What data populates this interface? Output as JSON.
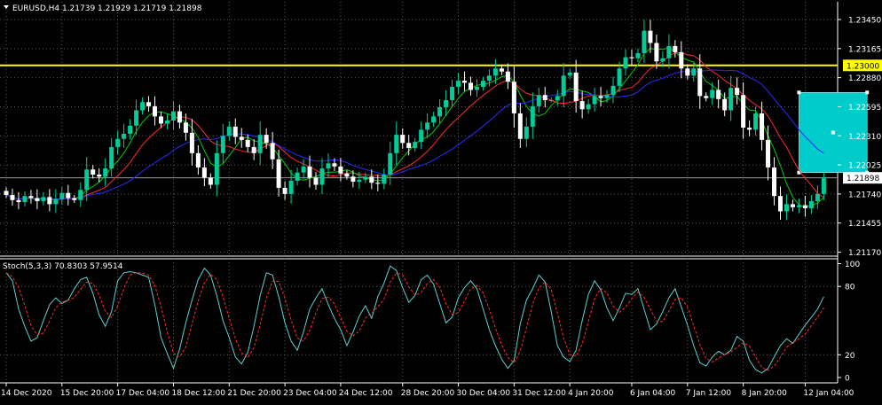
{
  "chart_data": {
    "type": "candlestick",
    "symbol_header": "EURUSD,H4  1.21739 1.21929 1.21719 1.21898",
    "price_axis_labels": [
      "1.23450",
      "1.23165",
      "1.22880",
      "1.22595",
      "1.22310",
      "1.22025",
      "1.21740",
      "1.21455",
      "1.21170"
    ],
    "price_axis_values": [
      1.2345,
      1.23165,
      1.2288,
      1.22595,
      1.2231,
      1.22025,
      1.2174,
      1.21455,
      1.2117
    ],
    "horizontal_line": {
      "price": 1.23,
      "label": "1.23000",
      "color": "#ffff00"
    },
    "last_price": {
      "price": 1.21898,
      "label": "1.21898"
    },
    "rectangle_zone": {
      "from_bar": 128,
      "to_bar": 139,
      "price_top": 1.22735,
      "price_bottom": 1.2195,
      "color": "#00cccc"
    },
    "time_labels": [
      {
        "bar": 0,
        "label": "14 Dec 2020"
      },
      {
        "bar": 9,
        "label": "15 Dec 20:00"
      },
      {
        "bar": 18,
        "label": "17 Dec 04:00"
      },
      {
        "bar": 27,
        "label": "18 Dec 12:00"
      },
      {
        "bar": 36,
        "label": "21 Dec 20:00"
      },
      {
        "bar": 45,
        "label": "23 Dec 04:00"
      },
      {
        "bar": 54,
        "label": "24 Dec 12:00"
      },
      {
        "bar": 64,
        "label": "28 Dec 20:00"
      },
      {
        "bar": 73,
        "label": "30 Dec 04:00"
      },
      {
        "bar": 82,
        "label": "31 Dec 12:00"
      },
      {
        "bar": 91,
        "label": "4 Jan 20:00"
      },
      {
        "bar": 101,
        "label": "6 Jan 04:00"
      },
      {
        "bar": 110,
        "label": "7 Jan 12:00"
      },
      {
        "bar": 119,
        "label": "8 Jan 20:00"
      },
      {
        "bar": 129,
        "label": "12 Jan 04:00"
      }
    ],
    "moving_averages": [
      {
        "color": "#00cc00",
        "period": 5
      },
      {
        "color": "#ff2a2a",
        "period": 10
      },
      {
        "color": "#2a2aff",
        "period": 20
      }
    ],
    "stochastic": {
      "header": "Stoch(5,3,3) 70.8303 57.9514",
      "axis_labels": [
        "100",
        "80",
        "20",
        "0"
      ],
      "axis_values": [
        100,
        80,
        20,
        0
      ],
      "main_color": "#5fd0d0",
      "signal_color": "#ff2a2a"
    },
    "colors": {
      "bull": "#00cc99",
      "bear": "#ffffff",
      "grid": "#5a5a5a",
      "axis_text": "#ffffff"
    },
    "closes": [
      1.2173,
      1.2168,
      1.2166,
      1.2172,
      1.217,
      1.2167,
      1.2171,
      1.2164,
      1.2169,
      1.2175,
      1.217,
      1.2168,
      1.2178,
      1.2198,
      1.2193,
      1.2191,
      1.2199,
      1.222,
      1.2228,
      1.2233,
      1.2241,
      1.2256,
      1.2264,
      1.226,
      1.225,
      1.2243,
      1.2246,
      1.2255,
      1.2244,
      1.2234,
      1.2214,
      1.22,
      1.219,
      1.2183,
      1.2214,
      1.2231,
      1.224,
      1.223,
      1.2227,
      1.222,
      1.2214,
      1.2232,
      1.2224,
      1.2208,
      1.218,
      1.2174,
      1.2187,
      1.2195,
      1.2201,
      1.219,
      1.2183,
      1.2199,
      1.2204,
      1.2201,
      1.2194,
      1.2191,
      1.2186,
      1.2188,
      1.2191,
      1.2185,
      1.2184,
      1.2193,
      1.2214,
      1.2232,
      1.2224,
      1.2219,
      1.2225,
      1.2237,
      1.2244,
      1.225,
      1.2259,
      1.2266,
      1.2279,
      1.2285,
      1.2283,
      1.2276,
      1.2279,
      1.2285,
      1.229,
      1.2297,
      1.2294,
      1.2284,
      1.2253,
      1.2228,
      1.224,
      1.226,
      1.2271,
      1.2266,
      1.2266,
      1.227,
      1.229,
      1.2293,
      1.2265,
      1.2257,
      1.2262,
      1.227,
      1.2268,
      1.2271,
      1.228,
      1.2297,
      1.2308,
      1.2307,
      1.2312,
      1.2334,
      1.2322,
      1.2304,
      1.2307,
      1.2319,
      1.2313,
      1.2297,
      1.229,
      1.2297,
      1.227,
      1.2268,
      1.2276,
      1.2267,
      1.2256,
      1.2278,
      1.2271,
      1.2239,
      1.2237,
      1.2253,
      1.2227,
      1.22,
      1.2172,
      1.2157,
      1.2164,
      1.2161,
      1.2163,
      1.216,
      1.2167,
      1.2174,
      1.219
    ],
    "stoch_main": [
      92,
      85,
      60,
      45,
      32,
      35,
      50,
      64,
      70,
      65,
      68,
      78,
      86,
      88,
      74,
      55,
      45,
      58,
      85,
      92,
      93,
      92,
      90,
      88,
      64,
      35,
      21,
      8,
      25,
      48,
      68,
      86,
      96,
      90,
      72,
      50,
      35,
      18,
      12,
      22,
      45,
      72,
      92,
      90,
      71,
      48,
      32,
      24,
      40,
      60,
      70,
      78,
      64,
      52,
      42,
      28,
      40,
      54,
      63,
      52,
      71,
      83,
      98,
      94,
      79,
      66,
      72,
      86,
      90,
      82,
      65,
      48,
      53,
      70,
      79,
      85,
      78,
      60,
      42,
      28,
      16,
      8,
      15,
      47,
      68,
      78,
      90,
      84,
      58,
      28,
      18,
      14,
      24,
      50,
      73,
      85,
      77,
      61,
      50,
      61,
      74,
      73,
      78,
      60,
      42,
      47,
      58,
      70,
      78,
      62,
      46,
      28,
      13,
      10,
      18,
      23,
      20,
      24,
      36,
      32,
      15,
      7,
      4,
      8,
      18,
      28,
      34,
      30,
      38,
      46,
      53,
      60,
      71
    ]
  }
}
